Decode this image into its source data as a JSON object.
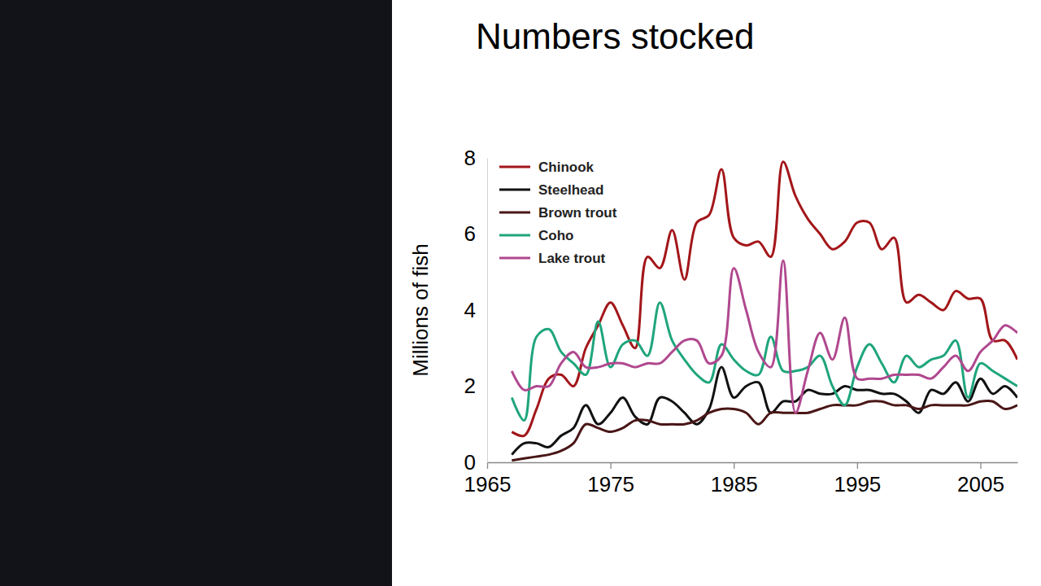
{
  "chart_data": {
    "type": "line",
    "title": "Numbers stocked",
    "y_label": "Millions of fish",
    "line_style": "smooth",
    "legend": "top-left",
    "grid": false,
    "xlim": [
      1965,
      2008
    ],
    "xticks": [
      1965,
      1975,
      1985,
      1995,
      2005
    ],
    "ylim": [
      0,
      8
    ],
    "yticks": [
      0,
      2,
      4,
      6,
      8
    ],
    "x": [
      1967,
      1968,
      1969,
      1970,
      1971,
      1972,
      1973,
      1974,
      1975,
      1976,
      1977,
      1978,
      1979,
      1980,
      1981,
      1982,
      1983,
      1984,
      1985,
      1986,
      1987,
      1988,
      1989,
      1990,
      1991,
      1992,
      1993,
      1994,
      1995,
      1996,
      1997,
      1998,
      1999,
      2000,
      2001,
      2002,
      2003,
      2004,
      2005,
      2006,
      2007,
      2008
    ],
    "series": [
      {
        "name": "Chinook",
        "color": "#a3161a",
        "values": [
          0.8,
          0.7,
          1.4,
          2.2,
          2.3,
          2.0,
          3.0,
          3.6,
          4.2,
          3.6,
          3.0,
          5.4,
          5.1,
          6.1,
          4.8,
          6.3,
          6.5,
          7.7,
          5.9,
          5.7,
          5.8,
          5.4,
          7.9,
          7.0,
          6.4,
          6.0,
          5.6,
          5.8,
          6.3,
          6.3,
          5.6,
          5.9,
          4.2,
          4.4,
          4.2,
          4.0,
          4.5,
          4.3,
          4.3,
          3.2,
          3.2,
          2.7
        ]
      },
      {
        "name": "Steelhead",
        "color": "#111111",
        "values": [
          0.2,
          0.5,
          0.5,
          0.4,
          0.7,
          0.9,
          1.5,
          1.0,
          1.3,
          1.7,
          1.2,
          1.0,
          1.7,
          1.6,
          1.3,
          1.0,
          1.4,
          2.5,
          1.7,
          2.0,
          2.1,
          1.3,
          1.6,
          1.6,
          1.9,
          1.8,
          1.8,
          2.0,
          1.9,
          1.9,
          1.8,
          1.8,
          1.6,
          1.3,
          1.9,
          1.8,
          2.1,
          1.6,
          2.2,
          1.8,
          2.0,
          1.7
        ]
      },
      {
        "name": "Brown trout",
        "color": "#4a1616",
        "values": [
          0.05,
          0.1,
          0.15,
          0.2,
          0.3,
          0.5,
          1.0,
          0.9,
          0.8,
          0.9,
          1.1,
          1.1,
          1.0,
          1.0,
          1.0,
          1.1,
          1.3,
          1.4,
          1.4,
          1.3,
          1.0,
          1.3,
          1.3,
          1.3,
          1.3,
          1.4,
          1.5,
          1.5,
          1.5,
          1.6,
          1.6,
          1.5,
          1.5,
          1.4,
          1.5,
          1.5,
          1.5,
          1.5,
          1.6,
          1.6,
          1.4,
          1.5
        ]
      },
      {
        "name": "Coho",
        "color": "#1fa57c",
        "values": [
          1.7,
          1.1,
          3.3,
          3.5,
          2.9,
          2.6,
          2.3,
          3.7,
          2.5,
          3.1,
          3.2,
          2.8,
          4.2,
          3.2,
          2.7,
          2.3,
          2.1,
          3.1,
          2.7,
          2.4,
          2.3,
          3.3,
          2.4,
          2.4,
          2.5,
          2.8,
          2.0,
          1.5,
          2.5,
          3.1,
          2.6,
          2.1,
          2.8,
          2.5,
          2.7,
          2.8,
          3.2,
          1.7,
          2.6,
          2.4,
          2.2,
          2.0
        ]
      },
      {
        "name": "Lake trout",
        "color": "#b0488f",
        "values": [
          2.4,
          1.9,
          2.0,
          2.0,
          2.6,
          2.9,
          2.5,
          2.5,
          2.6,
          2.6,
          2.5,
          2.6,
          2.6,
          2.9,
          3.2,
          3.2,
          2.6,
          2.8,
          5.1,
          4.0,
          2.9,
          2.5,
          5.3,
          1.3,
          2.4,
          3.4,
          2.7,
          3.8,
          2.2,
          2.2,
          2.2,
          2.3,
          2.3,
          2.3,
          2.2,
          2.5,
          2.8,
          2.4,
          2.9,
          3.2,
          3.6,
          3.4
        ]
      }
    ]
  }
}
